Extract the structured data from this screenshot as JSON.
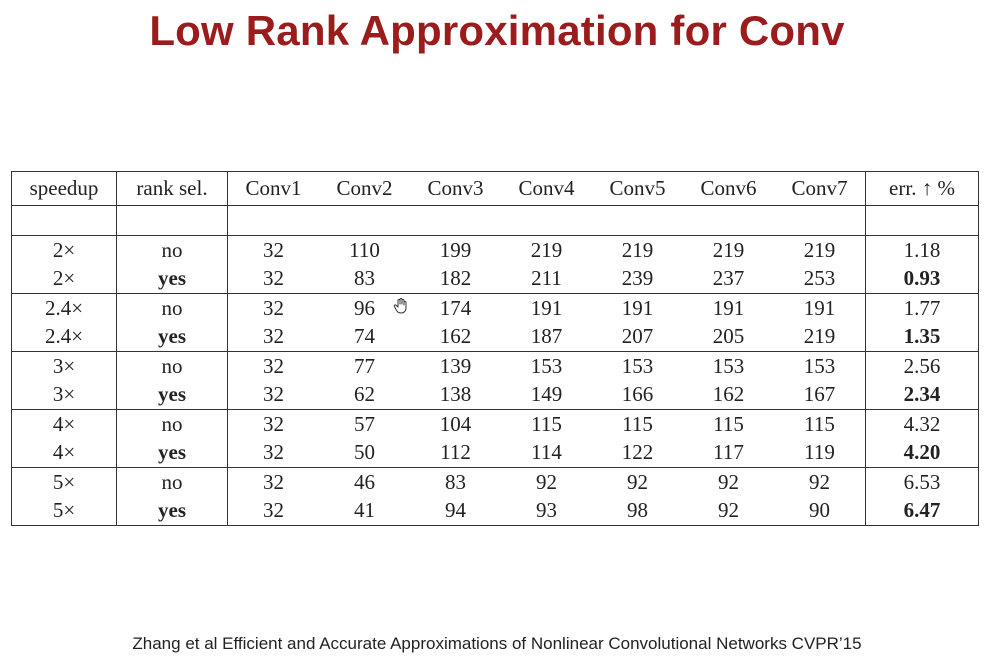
{
  "slide": {
    "title": "Low Rank Approximation for Conv",
    "citation": "Zhang et al Efficient and Accurate Approximations of Nonlinear Convolutional Networks CVPR’15"
  },
  "table": {
    "headers": [
      "speedup",
      "rank sel.",
      "Conv1",
      "Conv2",
      "Conv3",
      "Conv4",
      "Conv5",
      "Conv6",
      "Conv7",
      "err. ↑ %"
    ],
    "rows": [
      [
        "2×",
        "no",
        "32",
        "110",
        "199",
        "219",
        "219",
        "219",
        "219",
        "1.18"
      ],
      [
        "2×",
        "yes",
        "32",
        "83",
        "182",
        "211",
        "239",
        "237",
        "253",
        "0.93"
      ],
      [
        "2.4×",
        "no",
        "32",
        "96",
        "174",
        "191",
        "191",
        "191",
        "191",
        "1.77"
      ],
      [
        "2.4×",
        "yes",
        "32",
        "74",
        "162",
        "187",
        "207",
        "205",
        "219",
        "1.35"
      ],
      [
        "3×",
        "no",
        "32",
        "77",
        "139",
        "153",
        "153",
        "153",
        "153",
        "2.56"
      ],
      [
        "3×",
        "yes",
        "32",
        "62",
        "138",
        "149",
        "166",
        "162",
        "167",
        "2.34"
      ],
      [
        "4×",
        "no",
        "32",
        "57",
        "104",
        "115",
        "115",
        "115",
        "115",
        "4.32"
      ],
      [
        "4×",
        "yes",
        "32",
        "50",
        "112",
        "114",
        "122",
        "117",
        "119",
        "4.20"
      ],
      [
        "5×",
        "no",
        "32",
        "46",
        "83",
        "92",
        "92",
        "92",
        "92",
        "6.53"
      ],
      [
        "5×",
        "yes",
        "32",
        "41",
        "94",
        "93",
        "98",
        "92",
        "90",
        "6.47"
      ]
    ]
  },
  "icons": {
    "cursor": "hand-cursor-icon"
  }
}
